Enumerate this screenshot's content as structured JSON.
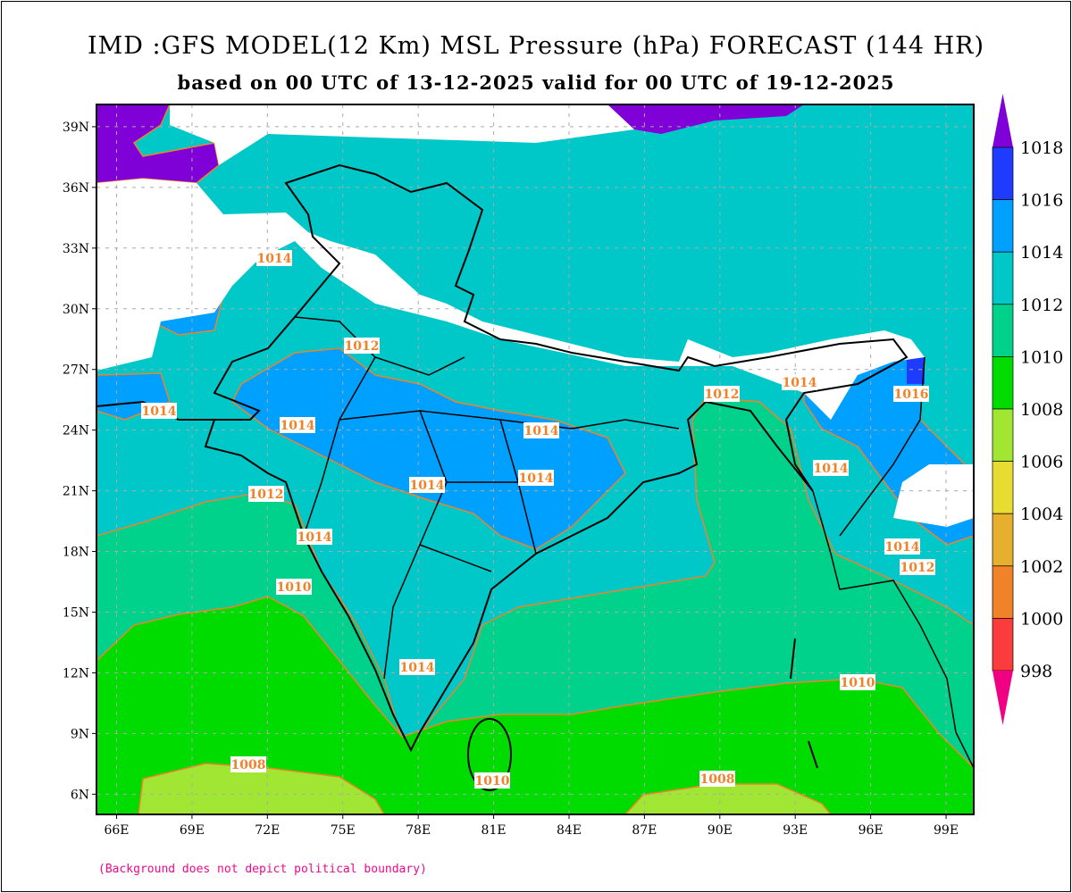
{
  "title": "IMD :GFS MODEL(12 Km) MSL Pressure (hPa) FORECAST (144 HR)",
  "subtitle": "based on 00 UTC of 13-12-2025 valid for 00 UTC of 19-12-2025",
  "note": "(Background does not depict political boundary)",
  "axes": {
    "lon_ticks": [
      "66E",
      "69E",
      "72E",
      "75E",
      "78E",
      "81E",
      "84E",
      "87E",
      "90E",
      "93E",
      "96E",
      "99E"
    ],
    "lat_ticks": [
      "39N",
      "36N",
      "33N",
      "30N",
      "27N",
      "24N",
      "21N",
      "18N",
      "15N",
      "12N",
      "9N",
      "6N"
    ],
    "lon_range": [
      65.2,
      100.1
    ],
    "lat_range": [
      5.0,
      40.1
    ],
    "grid": true
  },
  "colorbar": {
    "levels": [
      "1018",
      "1016",
      "1014",
      "1012",
      "1010",
      "1008",
      "1006",
      "1004",
      "1002",
      "1000",
      "998"
    ],
    "colors": [
      "#8000d8",
      "#1e3cff",
      "#00a0ff",
      "#00c8c8",
      "#00d28c",
      "#00dc00",
      "#a0e632",
      "#e6dc32",
      "#e6af2d",
      "#f08228",
      "#fa3c3c",
      "#f00082"
    ]
  },
  "contour_labels": [
    "1014",
    "1012",
    "1014",
    "1014",
    "1014",
    "1014",
    "1014",
    "1012",
    "1014",
    "1010",
    "1014",
    "1008",
    "1010",
    "1008",
    "1010",
    "1014",
    "1014",
    "1012",
    "1014",
    "1012",
    "1016"
  ]
}
